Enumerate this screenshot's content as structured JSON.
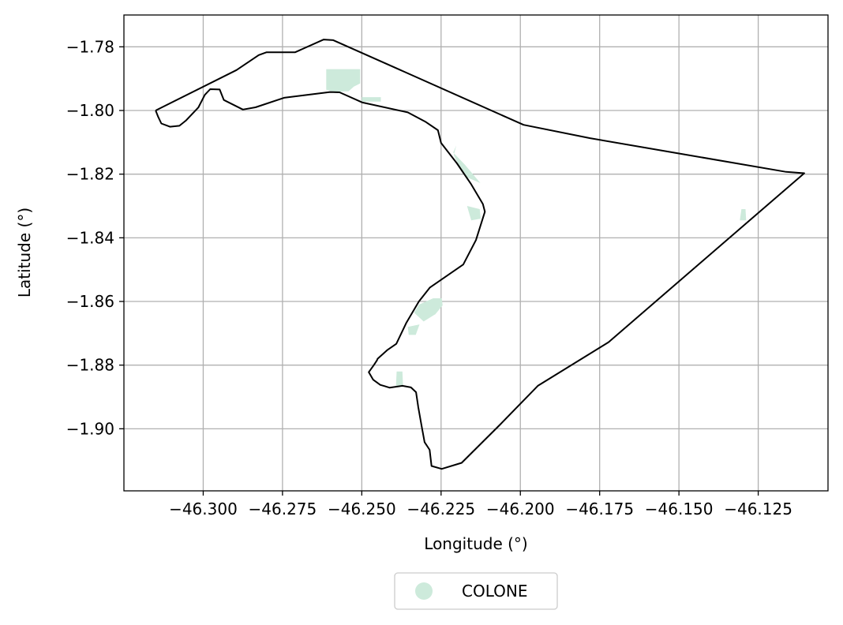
{
  "chart_data": {
    "type": "map",
    "xlabel": "Longitude (°)",
    "ylabel": "Latitude (°)",
    "xlim": [
      -46.325,
      -46.103
    ],
    "ylim": [
      -1.9195,
      -1.77
    ],
    "x_ticks": [
      -46.3,
      -46.275,
      -46.25,
      -46.225,
      -46.2,
      -46.175,
      -46.15,
      -46.125
    ],
    "x_tick_labels": [
      "−46.300",
      "−46.275",
      "−46.250",
      "−46.225",
      "−46.200",
      "−46.175",
      "−46.150",
      "−46.125"
    ],
    "y_ticks": [
      -1.78,
      -1.8,
      -1.82,
      -1.84,
      -1.86,
      -1.88,
      -1.9
    ],
    "y_tick_labels": [
      "−1.78",
      "−1.80",
      "−1.82",
      "−1.84",
      "−1.86",
      "−1.88",
      "−1.90"
    ],
    "grid": true,
    "legend": {
      "placement": "bottom-center",
      "entries": [
        {
          "label": "COLONE",
          "color": "#cdeadb"
        }
      ]
    },
    "boundary": {
      "color": "#000000",
      "coords": [
        [
          -46.315,
          -1.8
        ],
        [
          -46.2895,
          -1.7873
        ],
        [
          -46.2825,
          -1.7826
        ],
        [
          -46.28,
          -1.7817
        ],
        [
          -46.271,
          -1.7817
        ],
        [
          -46.262,
          -1.7777
        ],
        [
          -46.259,
          -1.7779
        ],
        [
          -46.199,
          -1.8045
        ],
        [
          -46.178,
          -1.8087
        ],
        [
          -46.15,
          -1.8135
        ],
        [
          -46.1162,
          -1.8193
        ],
        [
          -46.1105,
          -1.8197
        ],
        [
          -46.1722,
          -1.8728
        ],
        [
          -46.1945,
          -1.8865
        ],
        [
          -46.2065,
          -1.8988
        ],
        [
          -46.2185,
          -1.9107
        ],
        [
          -46.2248,
          -1.9126
        ],
        [
          -46.228,
          -1.9117
        ],
        [
          -46.2286,
          -1.9066
        ],
        [
          -46.2302,
          -1.9042
        ],
        [
          -46.2312,
          -1.8988
        ],
        [
          -46.2322,
          -1.8932
        ],
        [
          -46.2329,
          -1.8885
        ],
        [
          -46.2345,
          -1.887
        ],
        [
          -46.2372,
          -1.8865
        ],
        [
          -46.2412,
          -1.8871
        ],
        [
          -46.2428,
          -1.8866
        ],
        [
          -46.2442,
          -1.8862
        ],
        [
          -46.2464,
          -1.8846
        ],
        [
          -46.2478,
          -1.8822
        ],
        [
          -46.2462,
          -1.88
        ],
        [
          -46.2452,
          -1.8785
        ],
        [
          -46.245,
          -1.878
        ],
        [
          -46.242,
          -1.8753
        ],
        [
          -46.2391,
          -1.8733
        ],
        [
          -46.236,
          -1.8668
        ],
        [
          -46.232,
          -1.86
        ],
        [
          -46.2285,
          -1.8556
        ],
        [
          -46.218,
          -1.8484
        ],
        [
          -46.214,
          -1.8407
        ],
        [
          -46.2112,
          -1.8318
        ],
        [
          -46.2118,
          -1.8294
        ],
        [
          -46.2155,
          -1.8232
        ],
        [
          -46.22,
          -1.8166
        ],
        [
          -46.225,
          -1.8102
        ],
        [
          -46.226,
          -1.8062
        ],
        [
          -46.23,
          -1.8035
        ],
        [
          -46.2355,
          -1.8006
        ],
        [
          -46.2498,
          -1.7975
        ],
        [
          -46.257,
          -1.7943
        ],
        [
          -46.26,
          -1.7942
        ],
        [
          -46.268,
          -1.7952
        ],
        [
          -46.2745,
          -1.796
        ],
        [
          -46.2835,
          -1.799
        ],
        [
          -46.2875,
          -1.7997
        ],
        [
          -46.2935,
          -1.7967
        ],
        [
          -46.2948,
          -1.7934
        ],
        [
          -46.2978,
          -1.7933
        ],
        [
          -46.2995,
          -1.7951
        ],
        [
          -46.3015,
          -1.799
        ],
        [
          -46.3055,
          -1.8032
        ],
        [
          -46.3075,
          -1.8048
        ],
        [
          -46.3105,
          -1.8051
        ],
        [
          -46.3132,
          -1.8041
        ],
        [
          -46.3142,
          -1.802
        ],
        [
          -46.315,
          -1.8
        ]
      ]
    },
    "colone_patches": {
      "color": "#cdeadb",
      "polygons": [
        [
          [
            -46.2612,
            -1.787
          ],
          [
            -46.2505,
            -1.787
          ],
          [
            -46.2505,
            -1.7915
          ],
          [
            -46.2525,
            -1.7925
          ],
          [
            -46.2542,
            -1.794
          ],
          [
            -46.2555,
            -1.794
          ],
          [
            -46.2583,
            -1.7942
          ],
          [
            -46.2612,
            -1.7935
          ]
        ],
        [
          [
            -46.25,
            -1.7958
          ],
          [
            -46.244,
            -1.7958
          ],
          [
            -46.244,
            -1.7972
          ],
          [
            -46.25,
            -1.7972
          ]
        ],
        [
          [
            -46.2202,
            -1.811
          ],
          [
            -46.2212,
            -1.8132
          ],
          [
            -46.2175,
            -1.817
          ],
          [
            -46.2126,
            -1.8228
          ],
          [
            -46.2168,
            -1.821
          ],
          [
            -46.2192,
            -1.8178
          ],
          [
            -46.221,
            -1.814
          ]
        ],
        [
          [
            -46.2168,
            -1.83
          ],
          [
            -46.2155,
            -1.8345
          ],
          [
            -46.2125,
            -1.834
          ],
          [
            -46.2128,
            -1.831
          ]
        ],
        [
          [
            -46.2275,
            -1.859
          ],
          [
            -46.2248,
            -1.859
          ],
          [
            -46.2245,
            -1.8612
          ],
          [
            -46.2268,
            -1.864
          ],
          [
            -46.2305,
            -1.8663
          ],
          [
            -46.2335,
            -1.8635
          ],
          [
            -46.232,
            -1.861
          ]
        ],
        [
          [
            -46.2355,
            -1.868
          ],
          [
            -46.2318,
            -1.8672
          ],
          [
            -46.233,
            -1.8705
          ],
          [
            -46.2352,
            -1.8705
          ]
        ],
        [
          [
            -46.239,
            -1.882
          ],
          [
            -46.2372,
            -1.882
          ],
          [
            -46.237,
            -1.8865
          ],
          [
            -46.2392,
            -1.8865
          ]
        ],
        [
          [
            -46.1303,
            -1.831
          ],
          [
            -46.129,
            -1.831
          ],
          [
            -46.1288,
            -1.8345
          ],
          [
            -46.1308,
            -1.8345
          ]
        ]
      ]
    }
  }
}
